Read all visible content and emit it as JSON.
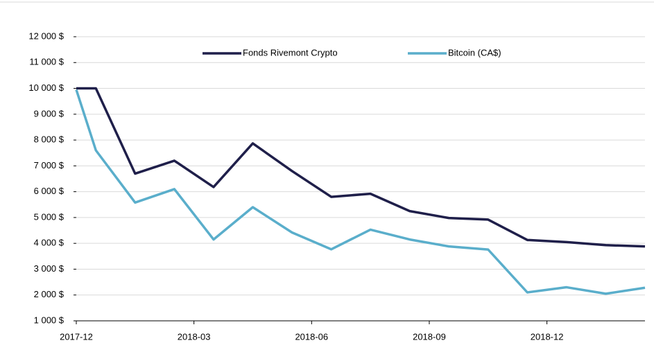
{
  "chart_data": {
    "type": "line",
    "x": [
      0,
      0.5,
      1.5,
      2.5,
      3.5,
      4.5,
      5.5,
      6.5,
      7.5,
      8.5,
      9.5,
      10.5,
      11.5,
      12.5,
      13.5,
      14.5
    ],
    "series": [
      {
        "name": "Fonds Rivemont Crypto",
        "color": "#1f1f4a",
        "values": [
          10000,
          10000,
          6700,
          7200,
          6180,
          7870,
          6800,
          5800,
          5920,
          5250,
          4980,
          4920,
          4130,
          4050,
          3930,
          3880
        ]
      },
      {
        "name": "Bitcoin (CA$)",
        "color": "#5aaecb",
        "values": [
          9950,
          7600,
          5580,
          6100,
          4150,
          5400,
          4420,
          3770,
          4530,
          4150,
          3880,
          3760,
          2100,
          2300,
          2050,
          2280
        ]
      }
    ],
    "xlim": [
      0,
      14.5
    ],
    "xticks": [
      {
        "value": 0,
        "label": "2017-12"
      },
      {
        "value": 3,
        "label": "2018-03"
      },
      {
        "value": 6,
        "label": "2018-06"
      },
      {
        "value": 9,
        "label": "2018-09"
      },
      {
        "value": 12,
        "label": "2018-12"
      }
    ],
    "ylim": [
      1000,
      12000
    ],
    "yticks": [
      {
        "value": 1000,
        "label": "1 000 $"
      },
      {
        "value": 2000,
        "label": "2 000 $"
      },
      {
        "value": 3000,
        "label": "3 000 $"
      },
      {
        "value": 4000,
        "label": "4 000 $"
      },
      {
        "value": 5000,
        "label": "5 000 $"
      },
      {
        "value": 6000,
        "label": "6 000 $"
      },
      {
        "value": 7000,
        "label": "7 000 $"
      },
      {
        "value": 8000,
        "label": "8 000 $"
      },
      {
        "value": 9000,
        "label": "9 000 $"
      },
      {
        "value": 10000,
        "label": "10 000 $"
      },
      {
        "value": 11000,
        "label": "11 000 $"
      },
      {
        "value": 12000,
        "label": "12 000 $"
      }
    ],
    "grid": true,
    "legend": "top"
  }
}
